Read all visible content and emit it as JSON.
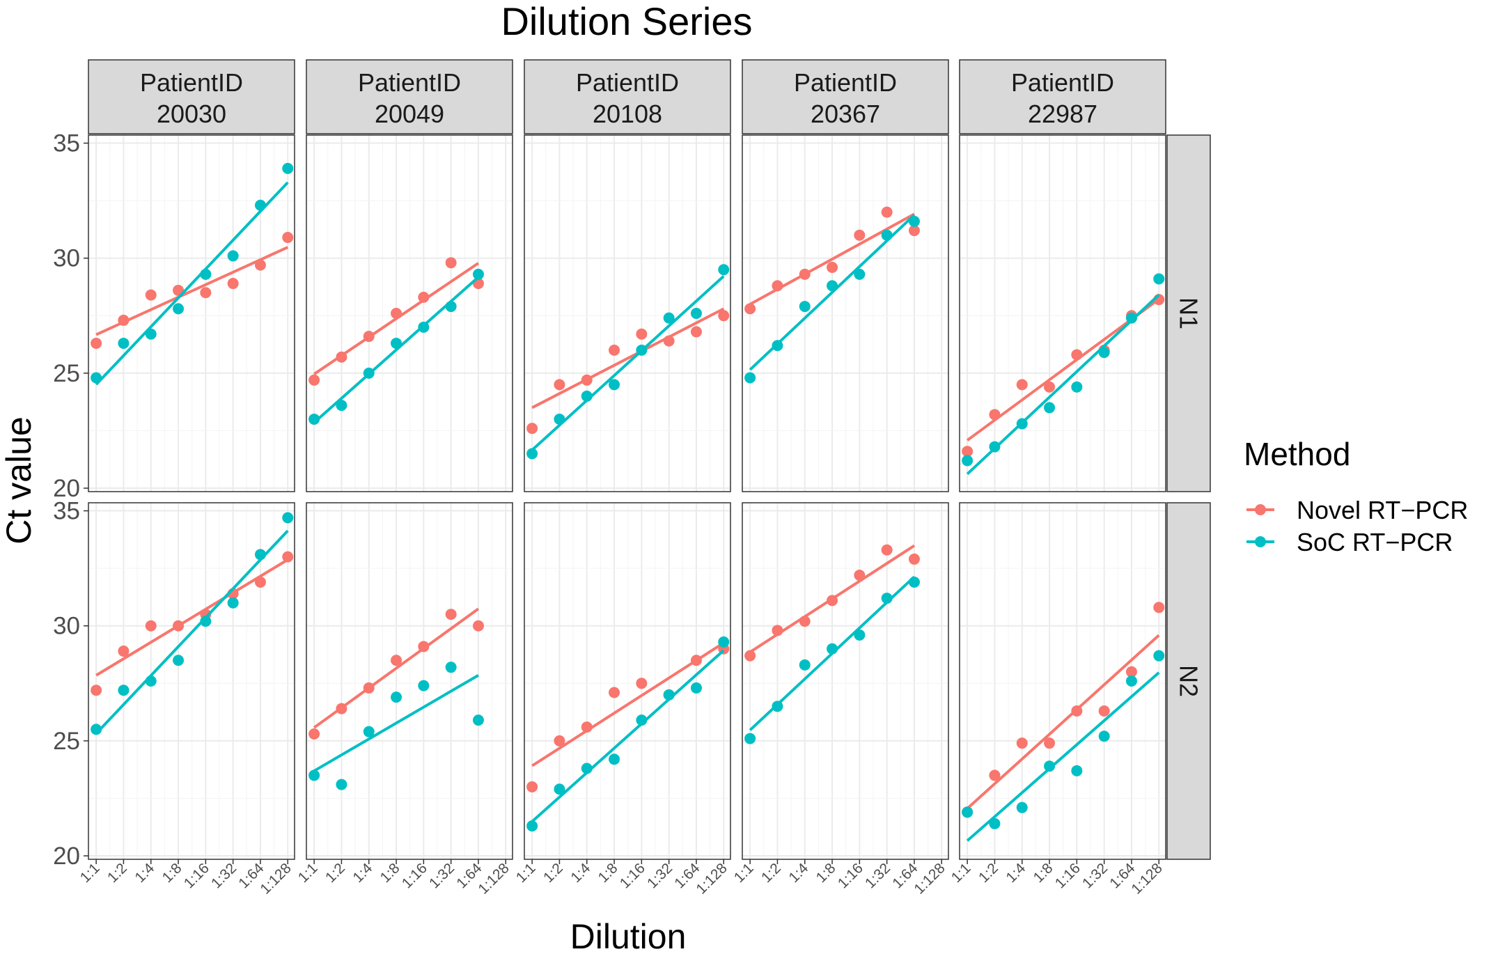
{
  "chart_data": {
    "type": "scatter",
    "title": "Dilution Series",
    "xlabel": "Dilution",
    "ylabel": "Ct value",
    "ylim": [
      20,
      35
    ],
    "yticks": [
      20,
      25,
      30,
      35
    ],
    "categories": [
      "1:1",
      "1:2",
      "1:4",
      "1:8",
      "1:16",
      "1:32",
      "1:64",
      "1:128"
    ],
    "grid": true,
    "legend": {
      "title": "Method",
      "placement": "right",
      "entries": [
        {
          "name": "Novel RT−PCR",
          "color": "#F8766D"
        },
        {
          "name": "SoC RT−PCR",
          "color": "#00BFC4"
        }
      ]
    },
    "facet_columns": [
      {
        "label_line1": "PatientID",
        "label_line2": "20030"
      },
      {
        "label_line1": "PatientID",
        "label_line2": "20049"
      },
      {
        "label_line1": "PatientID",
        "label_line2": "20108"
      },
      {
        "label_line1": "PatientID",
        "label_line2": "20367"
      },
      {
        "label_line1": "PatientID",
        "label_line2": "22987"
      }
    ],
    "facet_rows": [
      "N1",
      "N2"
    ],
    "trend": "linear regression per method",
    "panels": [
      {
        "row": "N1",
        "patient": "20030",
        "novel": [
          26.3,
          27.3,
          28.4,
          28.6,
          28.5,
          28.9,
          29.7,
          30.9
        ],
        "soc": [
          24.8,
          26.3,
          26.7,
          27.8,
          29.3,
          30.1,
          32.3,
          33.9
        ]
      },
      {
        "row": "N1",
        "patient": "20049",
        "novel": [
          24.7,
          25.7,
          26.6,
          27.6,
          28.3,
          29.8,
          28.9
        ],
        "soc": [
          23.0,
          23.6,
          25.0,
          26.3,
          27.0,
          27.9,
          29.3
        ]
      },
      {
        "row": "N1",
        "patient": "20108",
        "novel": [
          22.6,
          24.5,
          24.7,
          26.0,
          26.7,
          26.4,
          26.8,
          27.5
        ],
        "soc": [
          21.5,
          23.0,
          24.0,
          24.5,
          26.0,
          27.4,
          27.6,
          29.5
        ]
      },
      {
        "row": "N1",
        "patient": "20367",
        "novel": [
          27.8,
          28.8,
          29.3,
          29.6,
          31.0,
          32.0,
          31.2
        ],
        "soc": [
          24.8,
          26.2,
          27.9,
          28.8,
          29.3,
          31.0,
          31.6
        ]
      },
      {
        "row": "N1",
        "patient": "22987",
        "novel": [
          21.6,
          23.2,
          24.5,
          24.4,
          25.8,
          26.0,
          27.5,
          28.2
        ],
        "soc": [
          21.2,
          21.8,
          22.8,
          23.5,
          24.4,
          25.9,
          27.4,
          29.1
        ]
      },
      {
        "row": "N2",
        "patient": "20030",
        "novel": [
          27.2,
          28.9,
          30.0,
          30.0,
          30.5,
          31.4,
          31.9,
          33.0
        ],
        "soc": [
          25.5,
          27.2,
          27.6,
          28.5,
          30.2,
          31.0,
          33.1,
          34.7
        ]
      },
      {
        "row": "N2",
        "patient": "20049",
        "novel": [
          25.3,
          26.4,
          27.3,
          28.5,
          29.1,
          30.5,
          30.0
        ],
        "soc": [
          23.5,
          23.1,
          25.4,
          26.9,
          27.4,
          28.2,
          25.9
        ]
      },
      {
        "row": "N2",
        "patient": "20108",
        "novel": [
          23.0,
          25.0,
          25.6,
          27.1,
          27.5,
          27.0,
          28.5,
          29.0
        ],
        "soc": [
          21.3,
          22.9,
          23.8,
          24.2,
          25.9,
          27.0,
          27.3,
          29.3
        ]
      },
      {
        "row": "N2",
        "patient": "20367",
        "novel": [
          28.7,
          29.8,
          30.2,
          31.1,
          32.2,
          33.3,
          32.9
        ],
        "soc": [
          25.1,
          26.5,
          28.3,
          29.0,
          29.6,
          31.2,
          31.9
        ]
      },
      {
        "row": "N2",
        "patient": "22987",
        "novel": [
          21.9,
          23.5,
          24.9,
          24.9,
          26.3,
          26.3,
          28.0,
          30.8
        ],
        "soc": [
          21.9,
          21.4,
          22.1,
          23.9,
          23.7,
          25.2,
          27.6,
          28.7
        ]
      }
    ]
  }
}
